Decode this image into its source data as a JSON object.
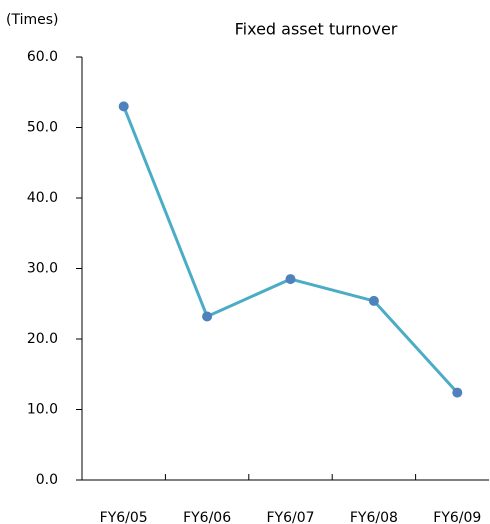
{
  "chart_data": {
    "type": "line",
    "title": "Fixed asset turnover",
    "y_label": "(Times)",
    "categories": [
      "FY6/05",
      "FY6/06",
      "FY6/07",
      "FY6/08",
      "FY6/09"
    ],
    "series": [
      {
        "name": "Fixed asset turnover",
        "color": "#4bacc6",
        "marker_color": "#4f81bd",
        "values": [
          53.0,
          23.2,
          28.5,
          25.4,
          12.4
        ]
      }
    ],
    "ylim": [
      0,
      60
    ],
    "yticks": [
      {
        "value": 0,
        "label": "0.0"
      },
      {
        "value": 10,
        "label": "10.0"
      },
      {
        "value": 20,
        "label": "20.0"
      },
      {
        "value": 30,
        "label": "30.0"
      },
      {
        "value": 40,
        "label": "40.0"
      },
      {
        "value": 50,
        "label": "50.0"
      },
      {
        "value": 60,
        "label": "60.0"
      }
    ],
    "grid": false
  }
}
